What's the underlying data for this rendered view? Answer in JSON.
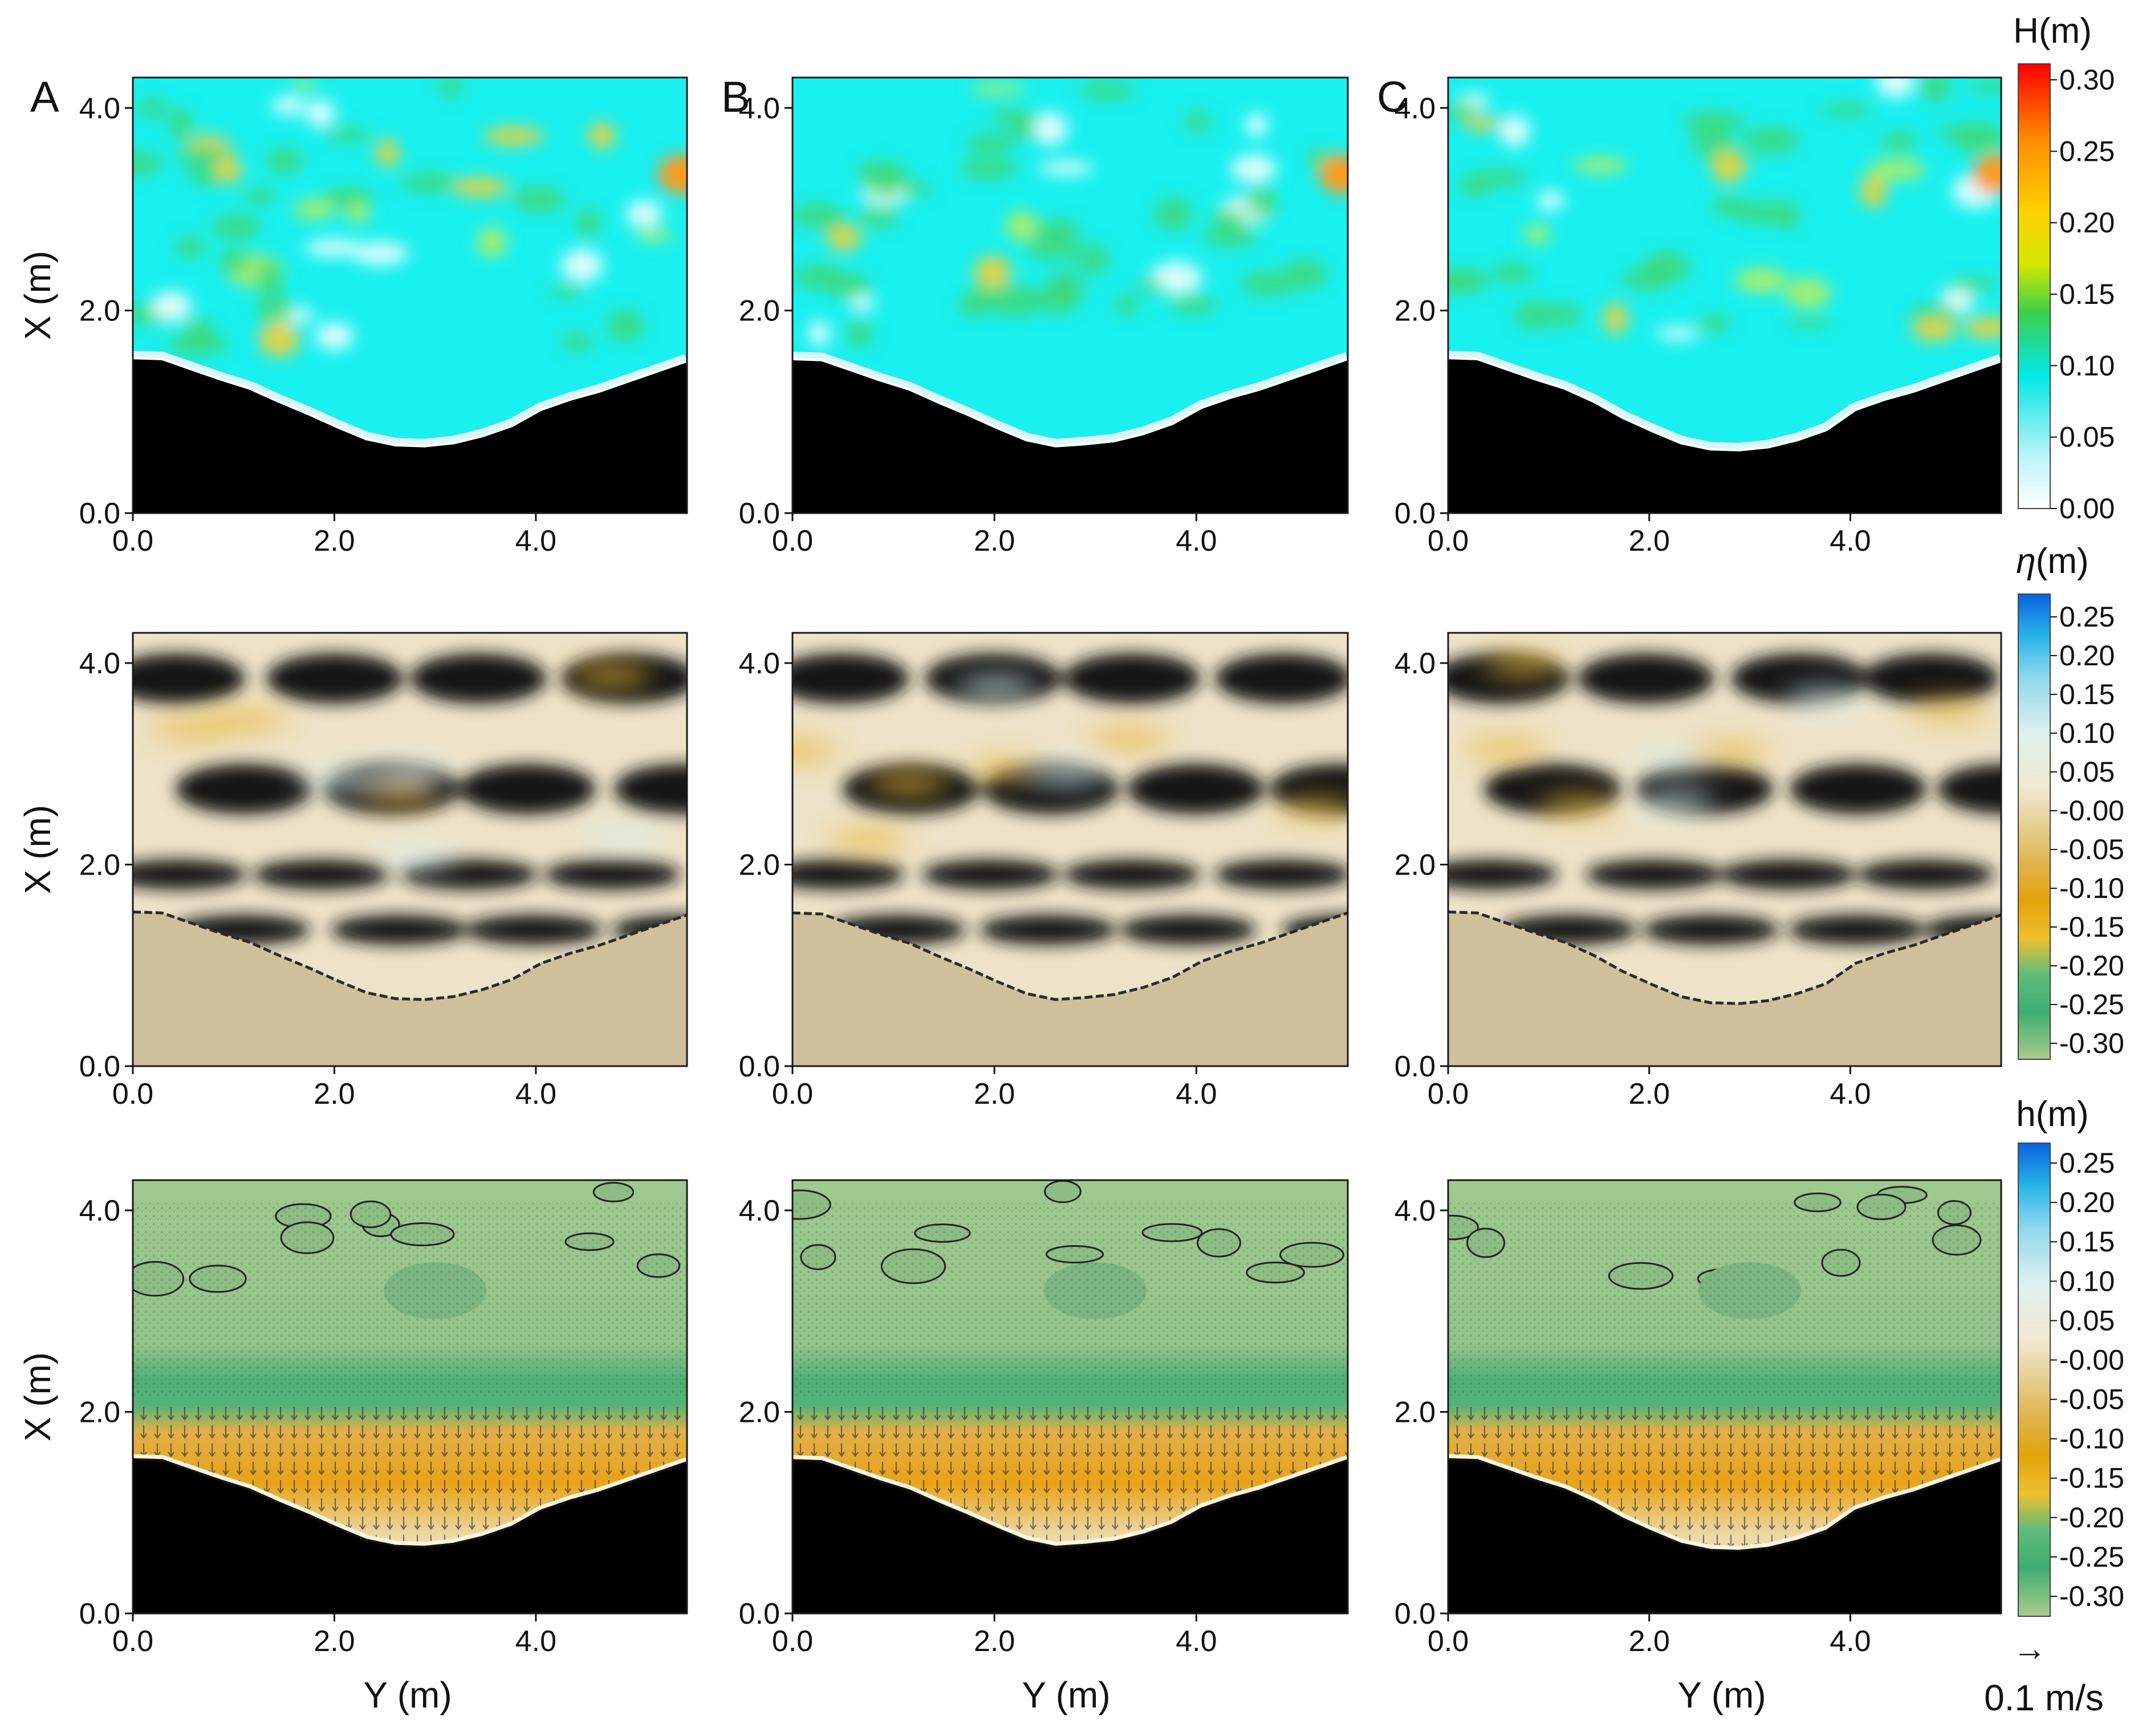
{
  "figure": {
    "panel_letters": [
      "A",
      "B",
      "C"
    ],
    "x_axis": {
      "title": "X (m)",
      "ticks": [
        "0.0",
        "2.0",
        "4.0"
      ],
      "range": [
        0.0,
        4.3
      ]
    },
    "y_axis": {
      "title": "Y (m)",
      "ticks": [
        "0.0",
        "2.0",
        "4.0"
      ],
      "range": [
        0.0,
        5.5
      ]
    },
    "rows": [
      {
        "id": "wave-height",
        "colorbar": {
          "title_text": "H(m)",
          "ticks": [
            "0.30",
            "0.25",
            "0.20",
            "0.15",
            "0.10",
            "0.05",
            "0.00"
          ],
          "stops": [
            "#ff0000",
            "#ff8c00",
            "#ffd000",
            "#d4e800",
            "#3ccf4a",
            "#00e8e8",
            "#b8f4f8",
            "#ffffff"
          ]
        }
      },
      {
        "id": "surface-elevation",
        "colorbar": {
          "title_symbol": "η",
          "title_unit": "(m)",
          "ticks": [
            "0.25",
            "0.20",
            "0.15",
            "0.10",
            "0.05",
            "-0.00",
            "-0.05",
            "-0.10",
            "-0.15",
            "-0.20",
            "-0.25",
            "-0.30"
          ],
          "stops": [
            "#0a62e0",
            "#27b4e8",
            "#8fd8ee",
            "#dff1ef",
            "#f1e7cf",
            "#e6cf8f",
            "#e1b24c",
            "#e3a40a",
            "#efbf2e",
            "#5dbb7b",
            "#3fae72",
            "#a9cc8a"
          ]
        }
      },
      {
        "id": "bed-change",
        "colorbar": {
          "title_text": "h(m)",
          "ticks": [
            "0.25",
            "0.20",
            "0.15",
            "0.10",
            "0.05",
            "-0.00",
            "-0.05",
            "-0.10",
            "-0.15",
            "-0.20",
            "-0.25",
            "-0.30"
          ],
          "stops": [
            "#0a62e0",
            "#27b4e8",
            "#8fd8ee",
            "#dff1ef",
            "#f1e7cf",
            "#e6cf8f",
            "#e1b24c",
            "#e3a40a",
            "#efbf2e",
            "#5dbb7b",
            "#3fae72",
            "#a9cc8a"
          ]
        },
        "vector_scale": {
          "arrow": "→",
          "label": "0.1 m/s"
        }
      }
    ],
    "colors": {
      "land": "#000000",
      "sand": "#cfc09c",
      "water_cyan": "#19f0f0",
      "water_green": "#9ec98f",
      "trough": "#141414"
    }
  }
}
